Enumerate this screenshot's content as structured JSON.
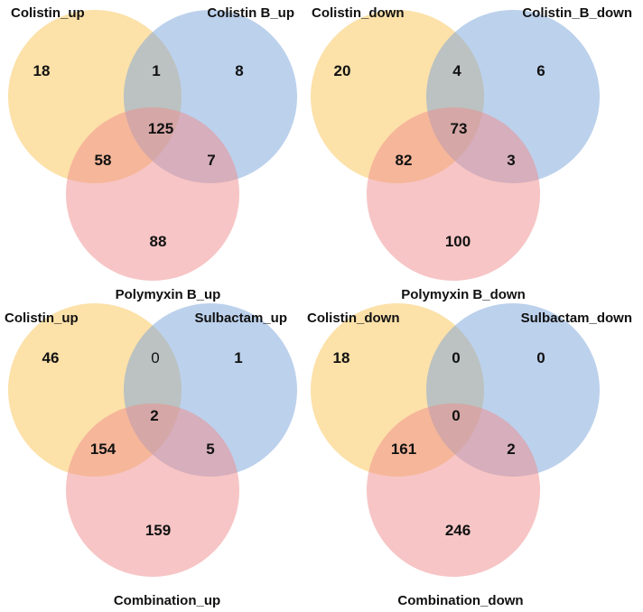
{
  "colors": {
    "set_a": "#f9c453",
    "set_b": "#7aa4d9",
    "set_c": "#f08c8c",
    "circle_opacity": "0.5",
    "text": "#111111"
  },
  "diagrams": [
    {
      "labels": {
        "a": "Colistin_up",
        "b": "Colistin B_up",
        "c": "Polymyxin B_up"
      },
      "counts": {
        "a_only": "18",
        "ab": "1",
        "b_only": "8",
        "abc": "125",
        "ac": "58",
        "bc": "7",
        "c_only": "88"
      }
    },
    {
      "labels": {
        "a": "Colistin_down",
        "b": "Colistin_B_down",
        "c": "Polymyxin B_down"
      },
      "counts": {
        "a_only": "20",
        "ab": "4",
        "b_only": "6",
        "abc": "73",
        "ac": "82",
        "bc": "3",
        "c_only": "100"
      }
    },
    {
      "labels": {
        "a": "Colistin_up",
        "b": "Sulbactam_up",
        "c": "Combination_up"
      },
      "counts": {
        "a_only": "46",
        "ab": "0",
        "b_only": "1",
        "abc": "2",
        "ac": "154",
        "bc": "5",
        "c_only": "159"
      }
    },
    {
      "labels": {
        "a": "Colistin_down",
        "b": "Sulbactam_down",
        "c": "Combination_down"
      },
      "counts": {
        "a_only": "18",
        "ab": "0",
        "b_only": "0",
        "abc": "0",
        "ac": "161",
        "bc": "2",
        "c_only": "246"
      }
    }
  ]
}
